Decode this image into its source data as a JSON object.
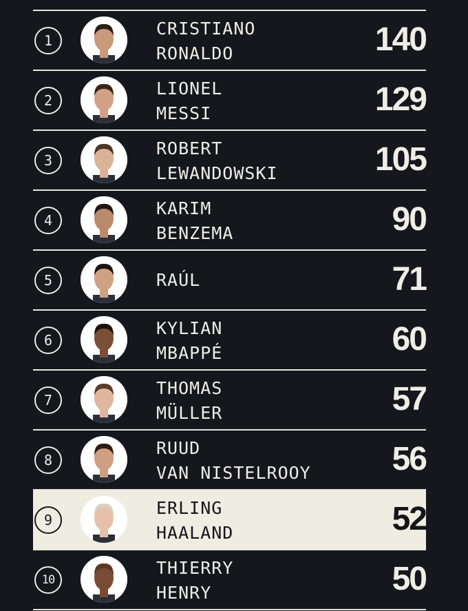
{
  "players": [
    {
      "rank": "1",
      "first": "CRISTIANO",
      "last": "RONALDO",
      "goals": "140",
      "skin": "#c89a7a",
      "hair": "#2a1e16"
    },
    {
      "rank": "2",
      "first": "LIONEL",
      "last": "MESSI",
      "goals": "129",
      "skin": "#d0a184",
      "hair": "#3a2619"
    },
    {
      "rank": "3",
      "first": "ROBERT",
      "last": "LEWANDOWSKI",
      "goals": "105",
      "skin": "#dbb197",
      "hair": "#4a3526"
    },
    {
      "rank": "4",
      "first": "KARIM",
      "last": "BENZEMA",
      "goals": "90",
      "skin": "#b98a6c",
      "hair": "#1d1713"
    },
    {
      "rank": "5",
      "first": "RAÚL",
      "last": "",
      "goals": "71",
      "skin": "#cfa183",
      "hair": "#1b1410"
    },
    {
      "rank": "6",
      "first": "KYLIAN",
      "last": "MBAPPÉ",
      "goals": "60",
      "skin": "#7a4f36",
      "hair": "#1a120d"
    },
    {
      "rank": "7",
      "first": "THOMAS",
      "last": "MÜLLER",
      "goals": "57",
      "skin": "#e0b79e",
      "hair": "#5a3e2b"
    },
    {
      "rank": "8",
      "first": "RUUD",
      "last": "VAN NISTELROOY",
      "goals": "56",
      "skin": "#cf9f82",
      "hair": "#2a1d15"
    },
    {
      "rank": "9",
      "first": "ERLING",
      "last": "HAALAND",
      "goals": "52",
      "skin": "#e6c0a8",
      "hair": "#d8cfc0",
      "highlighted": true
    },
    {
      "rank": "10",
      "first": "THIERRY",
      "last": "HENRY",
      "goals": "50",
      "skin": "#7a4c34",
      "hair": "#5d3826"
    }
  ],
  "colors": {
    "background": "#15171d",
    "text": "#efede6",
    "highlight": "#efece2"
  }
}
